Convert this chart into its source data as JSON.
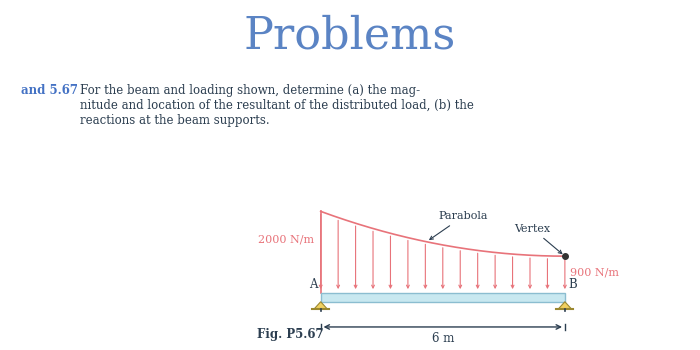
{
  "title": "Problems",
  "title_color": "#5B84C4",
  "title_fontsize": 32,
  "problem_label": "and 5.67",
  "problem_label_color": "#4472C4",
  "problem_text": "For the beam and loading shown, determine (a) the mag-\nnitude and location of the resultant of the distributed load, (b) the\nreactions at the beam supports.",
  "fig_label": "Fig. P5.67",
  "parabola_label": "Parabola",
  "vertex_label": "Vertex",
  "load_left_label": "2000 N/m",
  "load_right_label": "900 N/m",
  "dim_label": "6 m",
  "load_line_color": "#E8737A",
  "arrow_color": "#E8737A",
  "beam_color": "#C8E8F0",
  "beam_edge_color": "#8BBDD0",
  "support_color": "#F0D060",
  "dim_color": "#2C3E50",
  "text_color": "#2C3E50",
  "annotation_color": "#2C3E50"
}
